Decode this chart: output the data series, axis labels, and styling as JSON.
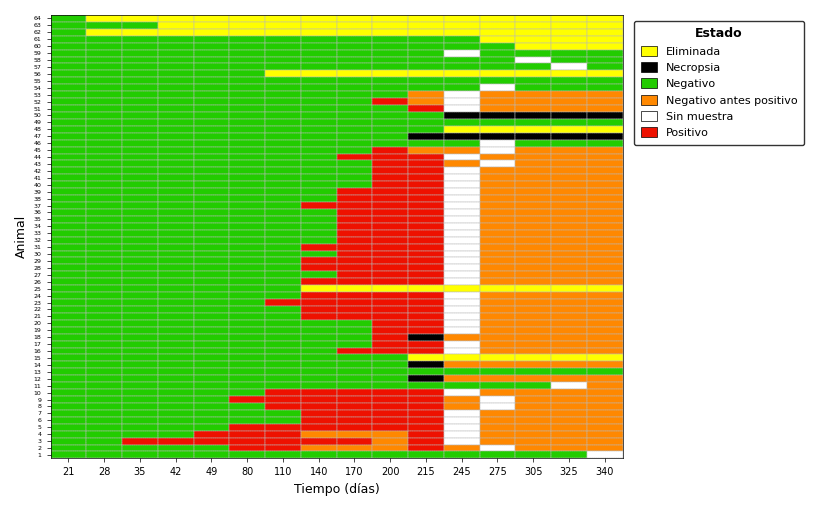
{
  "time_points": [
    21,
    28,
    35,
    42,
    49,
    80,
    110,
    140,
    170,
    200,
    215,
    245,
    275,
    305,
    325,
    340
  ],
  "n_animals": 63,
  "colors": {
    "Y": "#FFFF00",
    "B": "#000000",
    "G": "#22CC00",
    "O": "#FF8800",
    "W": "#FFFFFF",
    "R": "#EE1100"
  },
  "legend_colors": {
    "Eliminada": "#FFFF00",
    "Necropsia": "#000000",
    "Negativo": "#22CC00",
    "Negativo antes positivo": "#FF8800",
    "Sin muestra": "#FFFFFF",
    "Positivo": "#EE1100"
  },
  "legend_labels": [
    "Eliminada",
    "Necropsia",
    "Negativo",
    "Negativo antes positivo",
    "Sin muestra",
    "Positivo"
  ],
  "xlabel": "Tiempo (días)",
  "ylabel": "Animal",
  "legend_title": "Estado",
  "grid_color": "#BBBBBB",
  "grid": [
    [
      "G",
      "Y",
      "Y",
      "Y",
      "Y",
      "Y",
      "Y",
      "Y",
      "Y",
      "Y",
      "Y",
      "Y",
      "Y",
      "Y",
      "Y",
      "Y"
    ],
    [
      "G",
      "G",
      "G",
      "Y",
      "Y",
      "Y",
      "Y",
      "Y",
      "Y",
      "Y",
      "Y",
      "Y",
      "Y",
      "Y",
      "Y",
      "Y"
    ],
    [
      "G",
      "Y",
      "Y",
      "Y",
      "Y",
      "Y",
      "Y",
      "Y",
      "Y",
      "Y",
      "Y",
      "Y",
      "Y",
      "Y",
      "Y",
      "Y"
    ],
    [
      "G",
      "G",
      "G",
      "G",
      "G",
      "G",
      "G",
      "G",
      "G",
      "G",
      "G",
      "G",
      "Y",
      "Y",
      "Y",
      "Y"
    ],
    [
      "G",
      "G",
      "G",
      "G",
      "G",
      "G",
      "G",
      "G",
      "G",
      "G",
      "G",
      "G",
      "G",
      "Y",
      "Y",
      "Y"
    ],
    [
      "G",
      "G",
      "G",
      "G",
      "G",
      "G",
      "G",
      "G",
      "G",
      "G",
      "G",
      "W",
      "G",
      "G",
      "G",
      "G"
    ],
    [
      "G",
      "G",
      "G",
      "G",
      "G",
      "G",
      "G",
      "G",
      "G",
      "G",
      "G",
      "G",
      "G",
      "W",
      "G",
      "G"
    ],
    [
      "G",
      "G",
      "G",
      "G",
      "G",
      "G",
      "G",
      "G",
      "G",
      "G",
      "G",
      "G",
      "G",
      "G",
      "W",
      "G"
    ],
    [
      "G",
      "G",
      "G",
      "G",
      "G",
      "G",
      "Y",
      "Y",
      "Y",
      "Y",
      "Y",
      "Y",
      "Y",
      "Y",
      "Y",
      "Y"
    ],
    [
      "G",
      "G",
      "G",
      "G",
      "G",
      "G",
      "G",
      "G",
      "G",
      "G",
      "G",
      "G",
      "G",
      "G",
      "G",
      "G"
    ],
    [
      "G",
      "G",
      "G",
      "G",
      "G",
      "G",
      "G",
      "G",
      "G",
      "G",
      "G",
      "G",
      "W",
      "G",
      "G",
      "G"
    ],
    [
      "G",
      "G",
      "G",
      "G",
      "G",
      "G",
      "G",
      "G",
      "G",
      "G",
      "O",
      "W",
      "O",
      "O",
      "O",
      "O"
    ],
    [
      "G",
      "G",
      "G",
      "G",
      "G",
      "G",
      "G",
      "G",
      "G",
      "R",
      "O",
      "W",
      "O",
      "O",
      "O",
      "O"
    ],
    [
      "G",
      "G",
      "G",
      "G",
      "G",
      "G",
      "G",
      "G",
      "G",
      "G",
      "R",
      "W",
      "O",
      "O",
      "O",
      "O"
    ],
    [
      "G",
      "G",
      "G",
      "G",
      "G",
      "G",
      "G",
      "G",
      "G",
      "G",
      "G",
      "B",
      "B",
      "B",
      "B",
      "B"
    ],
    [
      "G",
      "G",
      "G",
      "G",
      "G",
      "G",
      "G",
      "G",
      "G",
      "G",
      "G",
      "G",
      "G",
      "G",
      "G",
      "G"
    ],
    [
      "G",
      "G",
      "G",
      "G",
      "G",
      "G",
      "G",
      "G",
      "G",
      "G",
      "G",
      "Y",
      "Y",
      "Y",
      "Y",
      "Y"
    ],
    [
      "G",
      "G",
      "G",
      "G",
      "G",
      "G",
      "G",
      "G",
      "G",
      "G",
      "B",
      "B",
      "B",
      "B",
      "B",
      "B"
    ],
    [
      "G",
      "G",
      "G",
      "G",
      "G",
      "G",
      "G",
      "G",
      "G",
      "G",
      "G",
      "G",
      "W",
      "G",
      "G",
      "G"
    ],
    [
      "G",
      "G",
      "G",
      "G",
      "G",
      "G",
      "G",
      "G",
      "G",
      "R",
      "O",
      "O",
      "W",
      "O",
      "O",
      "O"
    ],
    [
      "G",
      "G",
      "G",
      "G",
      "G",
      "G",
      "G",
      "G",
      "R",
      "R",
      "R",
      "W",
      "O",
      "O",
      "O",
      "O"
    ],
    [
      "G",
      "G",
      "G",
      "G",
      "G",
      "G",
      "G",
      "G",
      "G",
      "R",
      "R",
      "O",
      "W",
      "O",
      "O",
      "O"
    ],
    [
      "G",
      "G",
      "G",
      "G",
      "G",
      "G",
      "G",
      "G",
      "G",
      "R",
      "R",
      "W",
      "O",
      "O",
      "O",
      "O"
    ],
    [
      "G",
      "G",
      "G",
      "G",
      "G",
      "G",
      "G",
      "G",
      "G",
      "R",
      "R",
      "W",
      "O",
      "O",
      "O",
      "O"
    ],
    [
      "G",
      "G",
      "G",
      "G",
      "G",
      "G",
      "G",
      "G",
      "G",
      "R",
      "R",
      "W",
      "O",
      "O",
      "O",
      "O"
    ],
    [
      "G",
      "G",
      "G",
      "G",
      "G",
      "G",
      "G",
      "G",
      "R",
      "R",
      "R",
      "W",
      "O",
      "O",
      "O",
      "O"
    ],
    [
      "G",
      "G",
      "G",
      "G",
      "G",
      "G",
      "G",
      "G",
      "R",
      "R",
      "R",
      "W",
      "O",
      "O",
      "O",
      "O"
    ],
    [
      "G",
      "G",
      "G",
      "G",
      "G",
      "G",
      "G",
      "R",
      "R",
      "R",
      "R",
      "W",
      "O",
      "O",
      "O",
      "O"
    ],
    [
      "G",
      "G",
      "G",
      "G",
      "G",
      "G",
      "G",
      "G",
      "R",
      "R",
      "R",
      "W",
      "O",
      "O",
      "O",
      "O"
    ],
    [
      "G",
      "G",
      "G",
      "G",
      "G",
      "G",
      "G",
      "G",
      "R",
      "R",
      "R",
      "W",
      "O",
      "O",
      "O",
      "O"
    ],
    [
      "G",
      "G",
      "G",
      "G",
      "G",
      "G",
      "G",
      "G",
      "R",
      "R",
      "R",
      "W",
      "O",
      "O",
      "O",
      "O"
    ],
    [
      "G",
      "G",
      "G",
      "G",
      "G",
      "G",
      "G",
      "G",
      "R",
      "R",
      "R",
      "W",
      "O",
      "O",
      "O",
      "O"
    ],
    [
      "G",
      "G",
      "G",
      "G",
      "G",
      "G",
      "G",
      "G",
      "R",
      "R",
      "R",
      "W",
      "O",
      "O",
      "O",
      "O"
    ],
    [
      "G",
      "G",
      "G",
      "G",
      "G",
      "G",
      "G",
      "R",
      "R",
      "R",
      "R",
      "W",
      "O",
      "O",
      "O",
      "O"
    ],
    [
      "G",
      "G",
      "G",
      "G",
      "G",
      "G",
      "G",
      "G",
      "R",
      "R",
      "R",
      "W",
      "O",
      "O",
      "O",
      "O"
    ],
    [
      "G",
      "G",
      "G",
      "G",
      "G",
      "G",
      "G",
      "R",
      "R",
      "R",
      "R",
      "W",
      "O",
      "O",
      "O",
      "O"
    ],
    [
      "G",
      "G",
      "G",
      "G",
      "G",
      "G",
      "G",
      "R",
      "R",
      "R",
      "R",
      "W",
      "O",
      "O",
      "O",
      "O"
    ],
    [
      "G",
      "G",
      "G",
      "G",
      "G",
      "G",
      "G",
      "G",
      "R",
      "R",
      "R",
      "W",
      "O",
      "O",
      "O",
      "O"
    ],
    [
      "G",
      "G",
      "G",
      "G",
      "G",
      "G",
      "G",
      "R",
      "R",
      "R",
      "R",
      "W",
      "O",
      "O",
      "O",
      "O"
    ],
    [
      "G",
      "G",
      "G",
      "G",
      "G",
      "G",
      "G",
      "Y",
      "Y",
      "Y",
      "Y",
      "Y",
      "Y",
      "Y",
      "Y",
      "Y"
    ],
    [
      "G",
      "G",
      "G",
      "G",
      "G",
      "G",
      "G",
      "R",
      "R",
      "R",
      "R",
      "W",
      "O",
      "O",
      "O",
      "O"
    ],
    [
      "G",
      "G",
      "G",
      "G",
      "G",
      "G",
      "R",
      "R",
      "R",
      "R",
      "R",
      "W",
      "O",
      "O",
      "O",
      "O"
    ],
    [
      "G",
      "G",
      "G",
      "G",
      "G",
      "G",
      "G",
      "R",
      "R",
      "R",
      "R",
      "W",
      "O",
      "O",
      "O",
      "O"
    ],
    [
      "G",
      "G",
      "G",
      "G",
      "G",
      "G",
      "G",
      "R",
      "R",
      "R",
      "R",
      "W",
      "O",
      "O",
      "O",
      "O"
    ],
    [
      "G",
      "G",
      "G",
      "G",
      "G",
      "G",
      "G",
      "G",
      "G",
      "R",
      "R",
      "W",
      "O",
      "O",
      "O",
      "O"
    ],
    [
      "G",
      "G",
      "G",
      "G",
      "G",
      "G",
      "G",
      "G",
      "G",
      "R",
      "R",
      "W",
      "O",
      "O",
      "O",
      "O"
    ],
    [
      "G",
      "G",
      "G",
      "G",
      "G",
      "G",
      "G",
      "G",
      "G",
      "R",
      "B",
      "O",
      "O",
      "O",
      "O",
      "O"
    ],
    [
      "G",
      "G",
      "G",
      "G",
      "G",
      "G",
      "G",
      "G",
      "G",
      "R",
      "R",
      "W",
      "O",
      "O",
      "O",
      "O"
    ],
    [
      "G",
      "G",
      "G",
      "G",
      "G",
      "G",
      "G",
      "G",
      "R",
      "R",
      "R",
      "W",
      "O",
      "O",
      "O",
      "O"
    ],
    [
      "G",
      "G",
      "G",
      "G",
      "G",
      "G",
      "G",
      "G",
      "G",
      "G",
      "Y",
      "Y",
      "Y",
      "Y",
      "Y",
      "Y"
    ],
    [
      "G",
      "G",
      "G",
      "G",
      "G",
      "G",
      "G",
      "G",
      "G",
      "G",
      "B",
      "O",
      "O",
      "O",
      "O",
      "O"
    ],
    [
      "G",
      "G",
      "G",
      "G",
      "G",
      "G",
      "G",
      "G",
      "G",
      "G",
      "G",
      "G",
      "G",
      "G",
      "G",
      "G"
    ],
    [
      "G",
      "G",
      "G",
      "G",
      "G",
      "G",
      "G",
      "G",
      "G",
      "G",
      "B",
      "O",
      "O",
      "O",
      "O",
      "O"
    ],
    [
      "G",
      "G",
      "G",
      "G",
      "G",
      "G",
      "G",
      "G",
      "G",
      "G",
      "G",
      "G",
      "G",
      "G",
      "W",
      "O"
    ],
    [
      "G",
      "G",
      "G",
      "G",
      "G",
      "G",
      "R",
      "R",
      "R",
      "R",
      "R",
      "W",
      "O",
      "O",
      "O",
      "O"
    ],
    [
      "G",
      "G",
      "G",
      "G",
      "G",
      "R",
      "R",
      "R",
      "R",
      "R",
      "R",
      "O",
      "W",
      "O",
      "O",
      "O"
    ],
    [
      "G",
      "G",
      "G",
      "G",
      "G",
      "G",
      "R",
      "R",
      "R",
      "R",
      "R",
      "O",
      "W",
      "O",
      "O",
      "O"
    ],
    [
      "G",
      "G",
      "G",
      "G",
      "G",
      "G",
      "G",
      "R",
      "R",
      "R",
      "R",
      "W",
      "O",
      "O",
      "O",
      "O"
    ],
    [
      "G",
      "G",
      "G",
      "G",
      "G",
      "G",
      "G",
      "R",
      "R",
      "R",
      "R",
      "W",
      "O",
      "O",
      "O",
      "O"
    ],
    [
      "G",
      "G",
      "G",
      "G",
      "G",
      "R",
      "R",
      "R",
      "R",
      "R",
      "R",
      "W",
      "O",
      "O",
      "O",
      "O"
    ],
    [
      "G",
      "G",
      "G",
      "G",
      "R",
      "R",
      "R",
      "O",
      "O",
      "O",
      "R",
      "W",
      "O",
      "O",
      "O",
      "O"
    ],
    [
      "G",
      "G",
      "R",
      "R",
      "R",
      "R",
      "R",
      "R",
      "R",
      "O",
      "R",
      "W",
      "O",
      "O",
      "O",
      "O"
    ],
    [
      "G",
      "G",
      "G",
      "G",
      "G",
      "R",
      "R",
      "O",
      "O",
      "O",
      "R",
      "O",
      "W",
      "O",
      "O",
      "O"
    ],
    [
      "G",
      "G",
      "G",
      "G",
      "G",
      "G",
      "G",
      "G",
      "G",
      "G",
      "G",
      "G",
      "G",
      "G",
      "G",
      "W"
    ]
  ]
}
